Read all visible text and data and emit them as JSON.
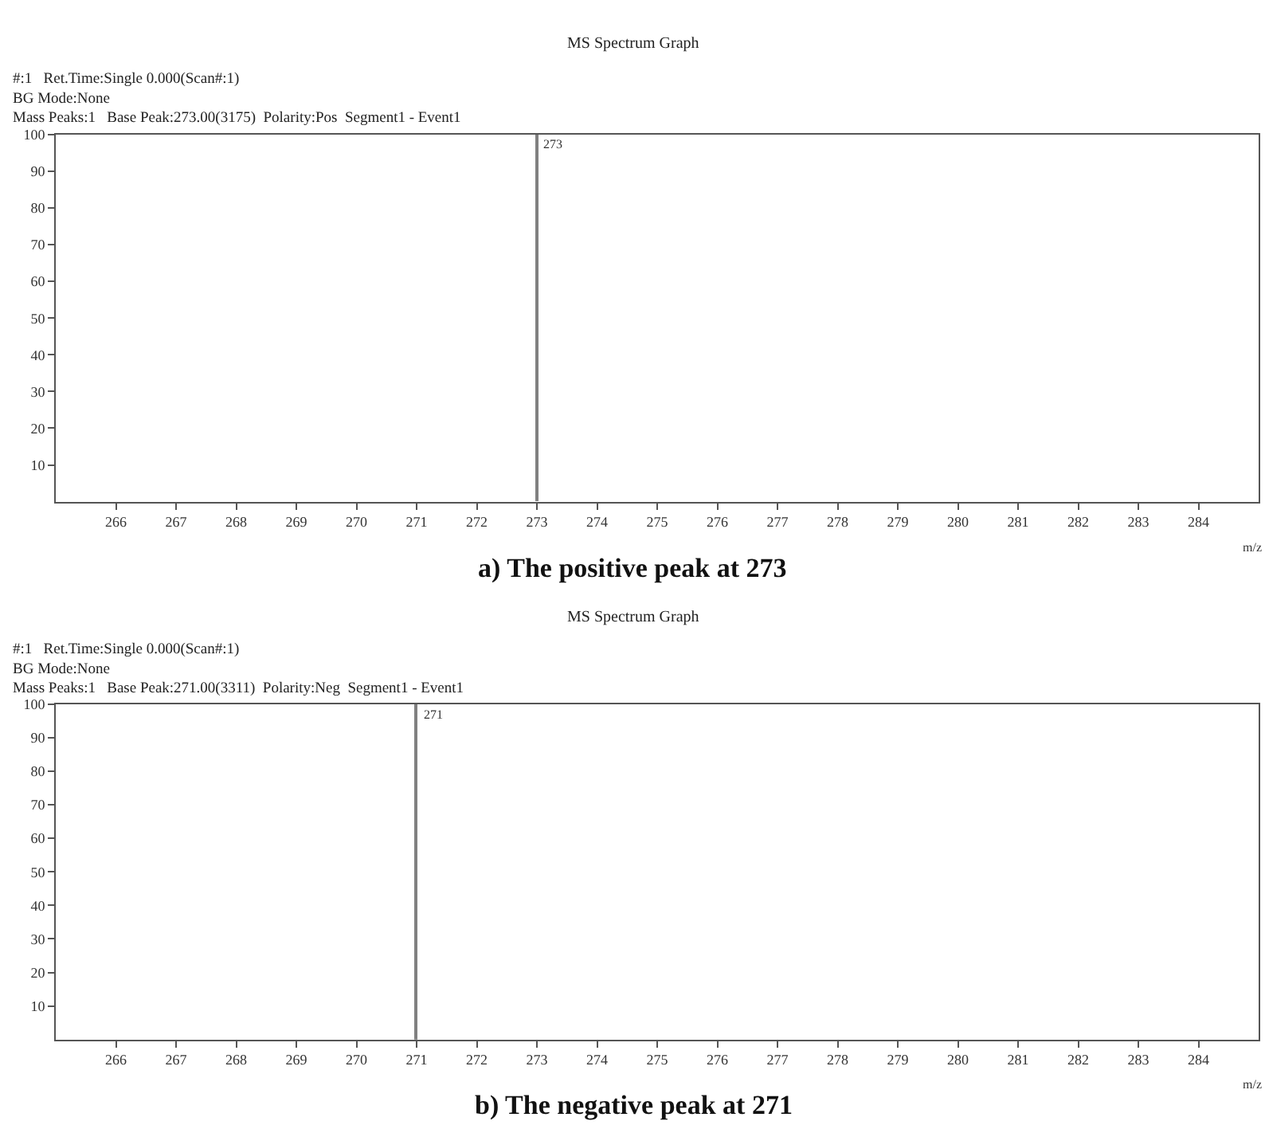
{
  "chart_data": [
    {
      "type": "bar",
      "title": "MS Spectrum Graph",
      "subtitle": "#:1   Ret.Time:Single 0.000(Scan#:1)\nBG Mode:None\nMass Peaks:1   Base Peak:273.00(3175)  Polarity:Pos  Segment1 - Event1",
      "xlabel": "m/z",
      "annotations": [
        {
          "text": "273",
          "x": 273,
          "y": 100
        },
        "a) The positive peak at 273"
      ],
      "x": [
        273
      ],
      "values": [
        100
      ],
      "color": "#808080",
      "xlim": [
        265,
        285
      ],
      "xticks": [
        266,
        267,
        268,
        269,
        270,
        271,
        272,
        273,
        274,
        275,
        276,
        277,
        278,
        279,
        280,
        281,
        282,
        283,
        284
      ],
      "ylim": [
        0,
        100
      ],
      "yticks": [
        10,
        20,
        30,
        40,
        50,
        60,
        70,
        80,
        90,
        100
      ]
    },
    {
      "type": "bar",
      "title": "MS Spectrum Graph",
      "subtitle": "#:1   Ret.Time:Single 0.000(Scan#:1)\nBG Mode:None\nMass Peaks:1   Base Peak:271.00(3311)  Polarity:Neg  Segment1 - Event1",
      "xlabel": "m/z",
      "annotations": [
        {
          "text": "271",
          "x": 271,
          "y": 100
        },
        "b) The negative peak at 271"
      ],
      "x": [
        271
      ],
      "values": [
        100
      ],
      "color": "#808080",
      "xlim": [
        265,
        285
      ],
      "xticks": [
        266,
        267,
        268,
        269,
        270,
        271,
        272,
        273,
        274,
        275,
        276,
        277,
        278,
        279,
        280,
        281,
        282,
        283,
        284
      ],
      "ylim": [
        0,
        100
      ],
      "yticks": [
        10,
        20,
        30,
        40,
        50,
        60,
        70,
        80,
        90,
        100
      ]
    }
  ]
}
